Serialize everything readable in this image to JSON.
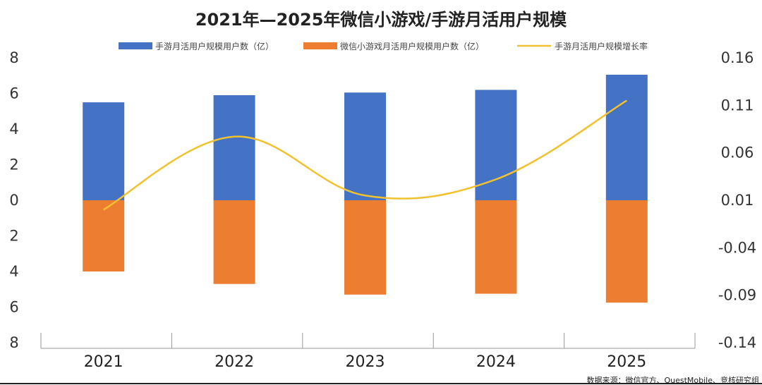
{
  "chart_data": {
    "type": "bar",
    "title": "2021年—2025年微信小游戏/手游月活用户规模",
    "categories": [
      "2021",
      "2022",
      "2023",
      "2024",
      "2025"
    ],
    "series": [
      {
        "name": "手游月活用户规模用户数（亿）",
        "type": "bar",
        "axis": "left",
        "color": "#4472C4",
        "values": [
          5.5,
          5.9,
          6.05,
          6.2,
          7.05
        ]
      },
      {
        "name": "微信小游戏月活用户规模用户数（亿）",
        "type": "bar",
        "axis": "left",
        "color": "#ED7D31",
        "values": [
          -4.0,
          -4.7,
          -5.3,
          -5.25,
          -5.75
        ]
      },
      {
        "name": "手游月活用户规模增长率",
        "type": "line",
        "axis": "right",
        "color": "#F2C12E",
        "values": [
          0.0,
          0.077,
          0.015,
          0.032,
          0.115
        ]
      }
    ],
    "y_left": {
      "min": -8,
      "max": 8,
      "step": 2,
      "tick_labels": [
        "8",
        "6",
        "4",
        "2",
        "0",
        "2",
        "4",
        "6",
        "8"
      ]
    },
    "y_right": {
      "min": -0.14,
      "max": 0.16,
      "step": 0.05,
      "tick_labels": [
        "0.16",
        "0.11",
        "0.06",
        "0.01",
        "-0.04",
        "-0.09",
        "-0.14"
      ]
    },
    "xlabel": "",
    "ylabel": "",
    "legend_position": "top",
    "grid": false
  },
  "source": "数据来源：微信官方、QuestMobile、竞核研究组"
}
